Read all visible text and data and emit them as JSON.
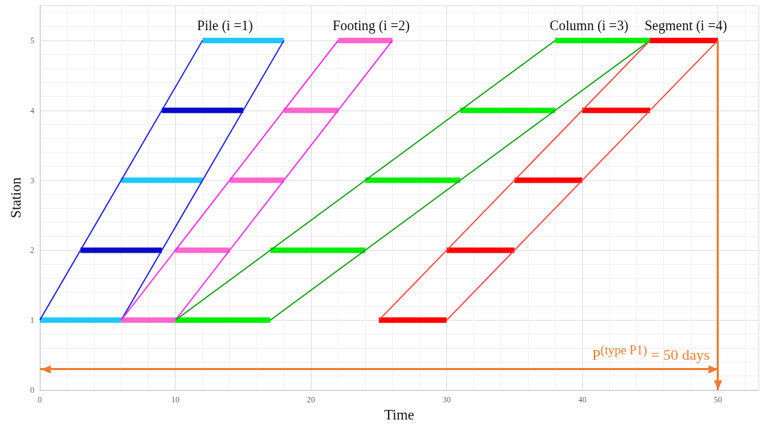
{
  "chart_data": {
    "type": "line",
    "xlabel": "Time",
    "ylabel": "Station",
    "xlim": [
      0,
      53
    ],
    "xticks": [
      0,
      10,
      20,
      30,
      40,
      50
    ],
    "ylim": [
      0,
      5.5
    ],
    "yticks": [
      0,
      1,
      2,
      3,
      4,
      5
    ],
    "grid": true,
    "series": [
      {
        "color": "#1ec8ff",
        "x": [
          0,
          6
        ],
        "values": [
          1,
          1
        ]
      },
      {
        "color": "#0a0ac8",
        "x": [
          3,
          9
        ],
        "values": [
          2,
          2
        ]
      },
      {
        "color": "#1ec8ff",
        "x": [
          6,
          12
        ],
        "values": [
          3,
          3
        ]
      },
      {
        "color": "#0a0ac8",
        "x": [
          9,
          15
        ],
        "values": [
          4,
          4
        ]
      },
      {
        "name": "Pile (i =1)",
        "color": "#1ec8ff",
        "x": [
          12,
          18
        ],
        "values": [
          5,
          5
        ]
      },
      {
        "color": "#1a1aee",
        "x": [
          0,
          12
        ],
        "values": [
          1,
          5
        ]
      },
      {
        "color": "#1a1aee",
        "x": [
          6,
          18
        ],
        "values": [
          1,
          5
        ]
      },
      {
        "color": "#ff66cc",
        "x": [
          6,
          10
        ],
        "values": [
          1,
          1
        ]
      },
      {
        "color": "#ff66cc",
        "x": [
          10,
          14
        ],
        "values": [
          2,
          2
        ]
      },
      {
        "color": "#ff66cc",
        "x": [
          14,
          18
        ],
        "values": [
          3,
          3
        ]
      },
      {
        "color": "#ff66cc",
        "x": [
          18,
          22
        ],
        "values": [
          4,
          4
        ]
      },
      {
        "name": "Footing (i =2)",
        "color": "#ff66cc",
        "x": [
          22,
          26
        ],
        "values": [
          5,
          5
        ]
      },
      {
        "color": "#ff22ee",
        "x": [
          6,
          22
        ],
        "values": [
          1,
          5
        ]
      },
      {
        "color": "#ff22ee",
        "x": [
          10,
          26
        ],
        "values": [
          1,
          5
        ]
      },
      {
        "color": "#00ee00",
        "x": [
          10,
          17
        ],
        "values": [
          1,
          1
        ]
      },
      {
        "color": "#00ee00",
        "x": [
          17,
          24
        ],
        "values": [
          2,
          2
        ]
      },
      {
        "color": "#00ee00",
        "x": [
          24,
          31
        ],
        "values": [
          3,
          3
        ]
      },
      {
        "color": "#00ee00",
        "x": [
          31,
          38
        ],
        "values": [
          4,
          4
        ]
      },
      {
        "name": "Column (i =3)",
        "color": "#00ee00",
        "x": [
          38,
          45
        ],
        "values": [
          5,
          5
        ]
      },
      {
        "color": "#11a011",
        "x": [
          10,
          38
        ],
        "values": [
          1,
          5
        ]
      },
      {
        "color": "#11a011",
        "x": [
          17,
          45
        ],
        "values": [
          1,
          5
        ]
      },
      {
        "color": "#ff0000",
        "x": [
          25,
          30
        ],
        "values": [
          1,
          1
        ]
      },
      {
        "color": "#ff0000",
        "x": [
          30,
          35
        ],
        "values": [
          2,
          2
        ]
      },
      {
        "color": "#ff0000",
        "x": [
          35,
          40
        ],
        "values": [
          3,
          3
        ]
      },
      {
        "color": "#ff0000",
        "x": [
          40,
          45
        ],
        "values": [
          4,
          4
        ]
      },
      {
        "name": "Segment (i =4)",
        "color": "#ff0000",
        "x": [
          45,
          50
        ],
        "values": [
          5,
          5
        ]
      },
      {
        "color": "#ff4444",
        "x": [
          25,
          45
        ],
        "values": [
          1,
          5
        ]
      },
      {
        "color": "#ff4444",
        "x": [
          30,
          50
        ],
        "values": [
          1,
          5
        ]
      }
    ],
    "ref_lines": [
      {
        "axis": "x",
        "value": 50,
        "color": "#ed7d31"
      },
      {
        "axis": "y",
        "value": 0.3,
        "color": "#ed7d31"
      }
    ],
    "annotations": [
      "P$^{(type P1)}$ = 50 days"
    ]
  }
}
